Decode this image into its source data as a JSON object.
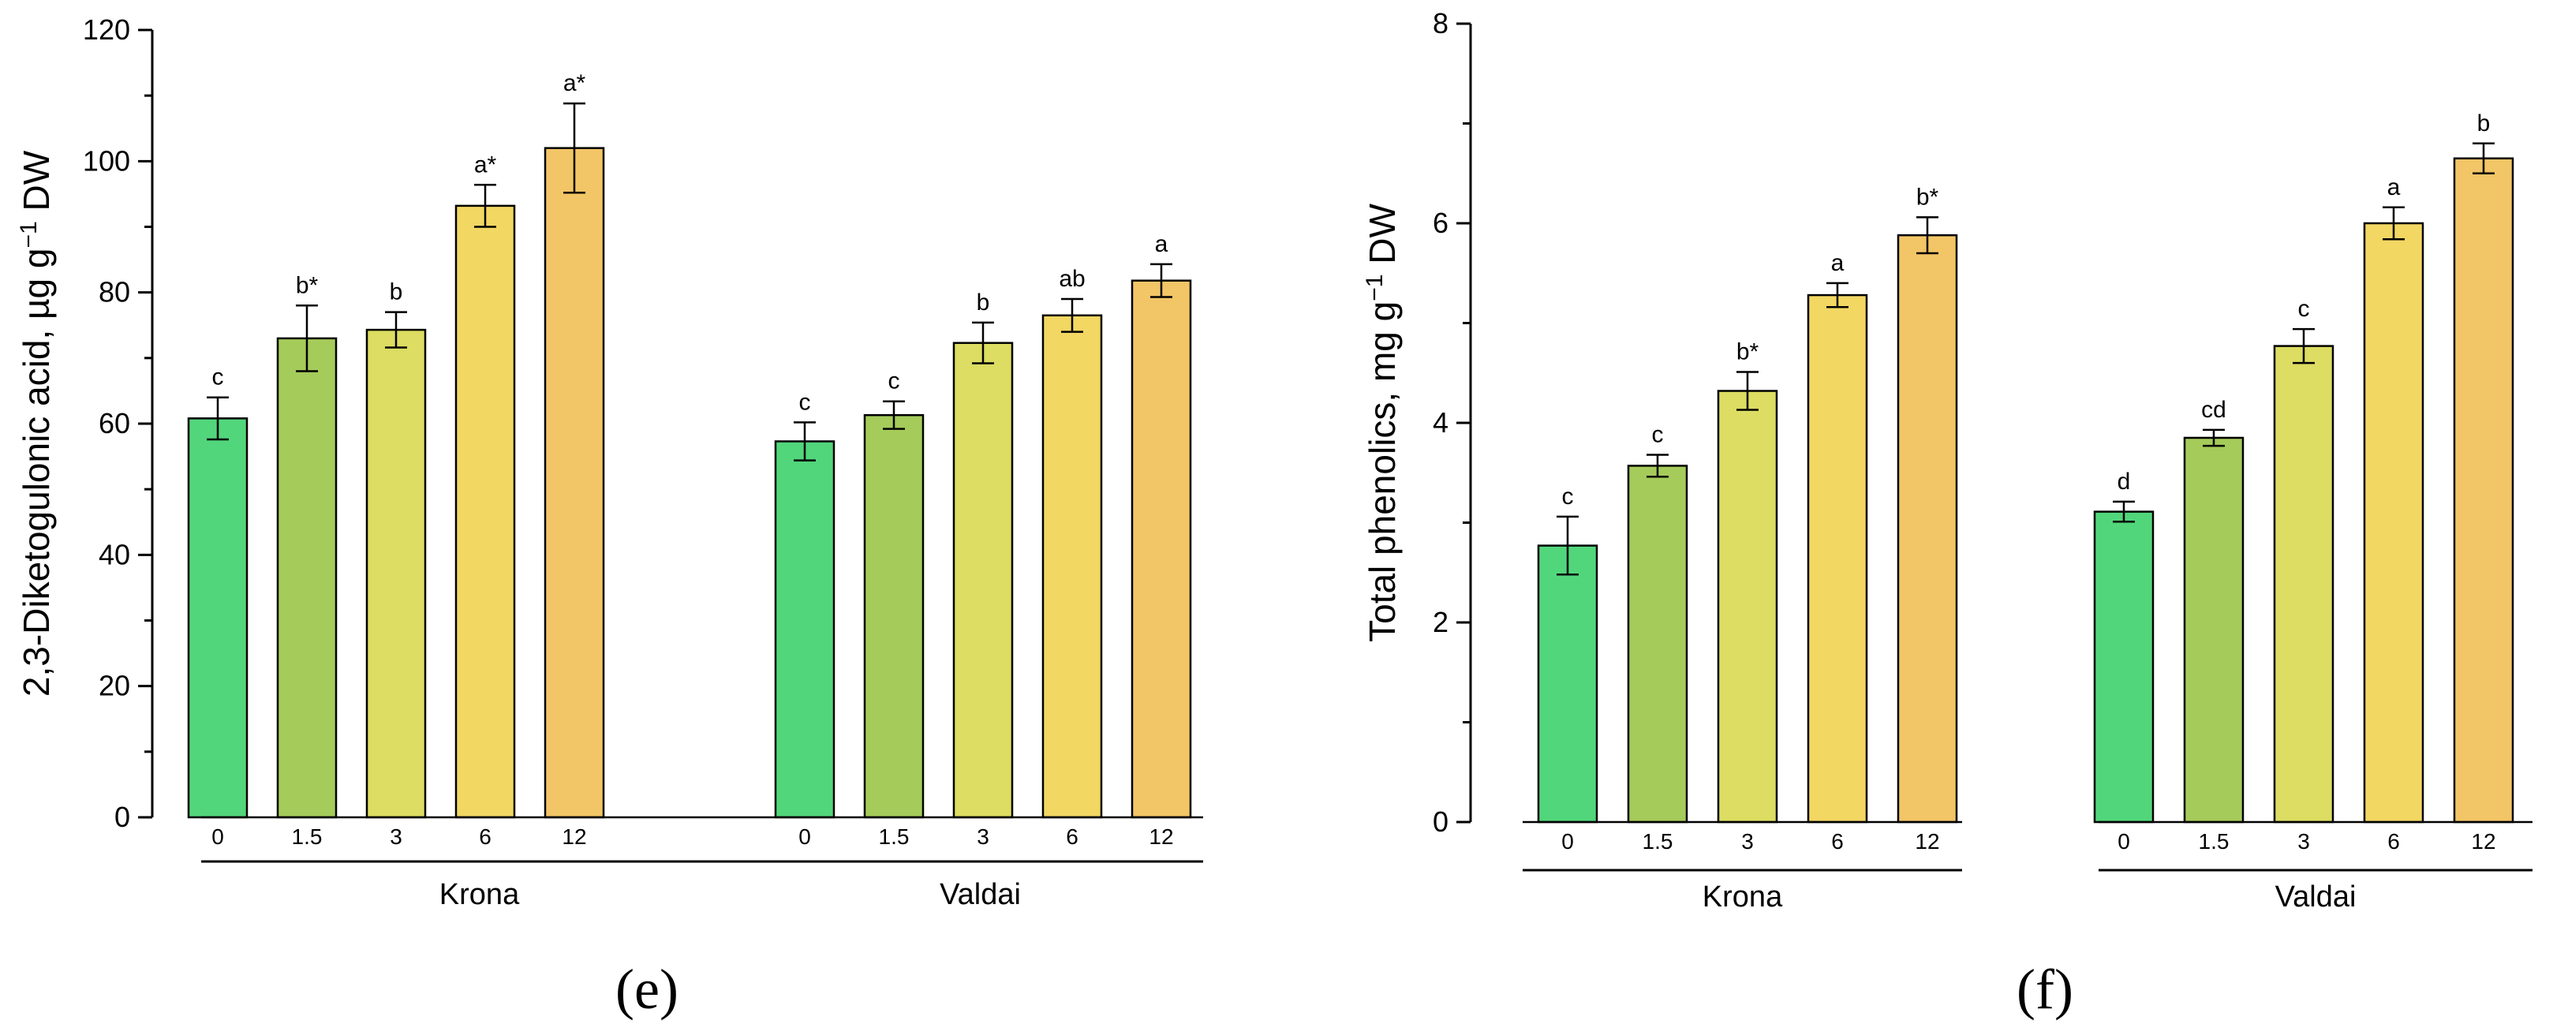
{
  "chart_data": [
    {
      "type": "bar",
      "panel": "e",
      "ylabel": "2,3-Diketogulonic acid, µg g",
      "ylabel_sup": "−1",
      "ylabel_tail": " DW",
      "ylim": [
        0,
        120
      ],
      "yticks": [
        0,
        20,
        40,
        60,
        80,
        100,
        120
      ],
      "groups": [
        {
          "name": "Krona",
          "categories": [
            "0",
            "1.5",
            "3",
            "6",
            "12"
          ],
          "values": [
            60.8,
            73.0,
            74.3,
            93.2,
            102.0
          ],
          "errors": [
            3.2,
            5.0,
            2.7,
            3.2,
            6.8
          ],
          "letters": [
            "c",
            "b*",
            "b",
            "a*",
            "a*"
          ]
        },
        {
          "name": "Valdai",
          "categories": [
            "0",
            "1.5",
            "3",
            "6",
            "12"
          ],
          "values": [
            57.3,
            61.3,
            72.3,
            76.5,
            81.8
          ],
          "errors": [
            2.9,
            2.1,
            3.1,
            2.5,
            2.5
          ],
          "letters": [
            "c",
            "c",
            "b",
            "ab",
            "a"
          ]
        }
      ]
    },
    {
      "type": "bar",
      "panel": "f",
      "ylabel": "Total phenolics, mg g",
      "ylabel_sup": "−1",
      "ylabel_tail": " DW",
      "ylim": [
        0,
        8
      ],
      "yticks": [
        0,
        2,
        4,
        6,
        8
      ],
      "groups": [
        {
          "name": "Krona",
          "categories": [
            "0",
            "1.5",
            "3",
            "6",
            "12"
          ],
          "values": [
            2.77,
            3.57,
            4.32,
            5.28,
            5.88
          ],
          "errors": [
            0.29,
            0.11,
            0.19,
            0.12,
            0.18
          ],
          "letters": [
            "c",
            "c",
            "b*",
            "a",
            "b*"
          ]
        },
        {
          "name": "Valdai",
          "categories": [
            "0",
            "1.5",
            "3",
            "6",
            "12"
          ],
          "values": [
            3.11,
            3.85,
            4.77,
            6.0,
            6.65
          ],
          "errors": [
            0.1,
            0.08,
            0.17,
            0.16,
            0.15
          ],
          "letters": [
            "d",
            "cd",
            "c",
            "a",
            "b"
          ]
        }
      ]
    }
  ],
  "bar_colors": [
    "#52d67b",
    "#a5cb5a",
    "#dcdd62",
    "#f2d763",
    "#f2c566"
  ],
  "panel_labels": [
    "(e)",
    "(f)"
  ]
}
